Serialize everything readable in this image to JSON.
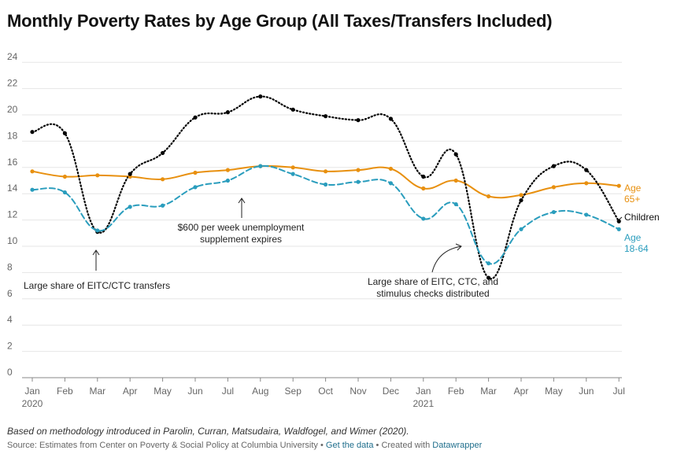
{
  "title": "Monthly Poverty Rates by Age Group (All Taxes/Transfers Included)",
  "footer": {
    "note": "Based on methodology introduced in Parolin, Curran, Matsudaira, Waldfogel, and Wimer (2020).",
    "source": "Source: Estimates from Center on Poverty & Social Policy at Columbia University",
    "sep1": "•",
    "data_link": "Get the data",
    "sep2": "• Created with",
    "tool_link": "Datawrapper"
  },
  "colors": {
    "children": "#000000",
    "age65": "#e8900f",
    "age1864": "#2a9dbd",
    "grid": "#e6e6e6",
    "axis": "#888888"
  },
  "chart_data": {
    "type": "line",
    "categories": [
      "Jan",
      "Feb",
      "Mar",
      "Apr",
      "May",
      "Jun",
      "Jul",
      "Aug",
      "Sep",
      "Oct",
      "Nov",
      "Dec",
      "Jan",
      "Feb",
      "Mar",
      "Apr",
      "May",
      "Jun",
      "Jul"
    ],
    "year_labels": [
      {
        "index": 0,
        "label": "2020"
      },
      {
        "index": 12,
        "label": "2021"
      }
    ],
    "ylim": [
      0,
      24
    ],
    "yticks": [
      0,
      2,
      4,
      6,
      8,
      10,
      12,
      14,
      16,
      18,
      20,
      22,
      24
    ],
    "grid": true,
    "series": [
      {
        "key": "age65",
        "name_lines": [
          "Age",
          "65+"
        ],
        "style": "solid",
        "values": [
          15.7,
          15.3,
          15.4,
          15.3,
          15.1,
          15.6,
          15.8,
          16.1,
          16.0,
          15.7,
          15.8,
          15.9,
          14.4,
          15.0,
          13.8,
          13.9,
          14.5,
          14.8,
          14.6
        ]
      },
      {
        "key": "children",
        "name_lines": [
          "Children"
        ],
        "style": "dotted",
        "values": [
          18.7,
          18.6,
          11.1,
          15.5,
          17.1,
          19.8,
          20.2,
          21.4,
          20.4,
          19.9,
          19.6,
          19.7,
          15.3,
          17.0,
          7.6,
          13.5,
          16.1,
          15.8,
          11.9
        ]
      },
      {
        "key": "age1864",
        "name_lines": [
          "Age",
          "18-64"
        ],
        "style": "dashed",
        "values": [
          14.3,
          14.1,
          11.2,
          13.0,
          13.1,
          14.5,
          15.0,
          16.1,
          15.5,
          14.7,
          14.9,
          14.8,
          12.1,
          13.2,
          8.7,
          11.3,
          12.6,
          12.4,
          11.3
        ]
      }
    ],
    "annotations": [
      {
        "lines": [
          "Large share of EITC/CTC transfers"
        ],
        "index": 2
      },
      {
        "lines": [
          "$600 per week unemployment",
          "supplement expires"
        ],
        "index": 6.5
      },
      {
        "lines": [
          "Large share of EITC, CTC, and",
          "stimulus checks distributed"
        ],
        "index": 13.1
      }
    ]
  }
}
